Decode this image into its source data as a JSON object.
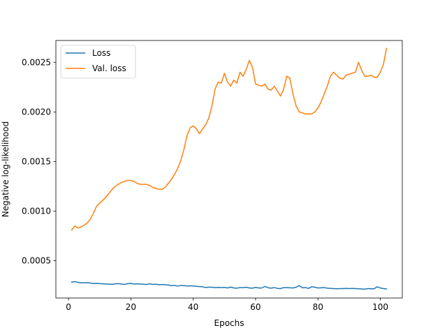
{
  "chart_data": {
    "type": "line",
    "title": "",
    "xlabel": "Epochs",
    "ylabel": "Negative log-likelihood",
    "xlim": [
      -4.05,
      107.05
    ],
    "ylim": [
      0.000125,
      0.00272
    ],
    "xticks": [
      0,
      20,
      40,
      60,
      80,
      100
    ],
    "xtick_labels": [
      "0",
      "20",
      "40",
      "60",
      "80",
      "100"
    ],
    "yticks": [
      0.0005,
      0.001,
      0.0015,
      0.002,
      0.0025
    ],
    "ytick_labels": [
      "0.0005",
      "0.0010",
      "0.0015",
      "0.0020",
      "0.0025"
    ],
    "grid": false,
    "legend_position": "top-left",
    "x_start": 1,
    "series": [
      {
        "name": "Loss",
        "color": "#1f77b4",
        "values": [
          0.000285,
          0.00029,
          0.000283,
          0.000278,
          0.000278,
          0.00028,
          0.000276,
          0.00027,
          0.000272,
          0.00027,
          0.000268,
          0.000266,
          0.000266,
          0.000262,
          0.000268,
          0.00027,
          0.000266,
          0.000262,
          0.00027,
          0.000272,
          0.000266,
          0.000268,
          0.000266,
          0.000264,
          0.000261,
          0.000268,
          0.000262,
          0.000264,
          0.000259,
          0.000261,
          0.000259,
          0.000256,
          0.00025,
          0.000252,
          0.000245,
          0.000252,
          0.00025,
          0.000246,
          0.000248,
          0.000246,
          0.000243,
          0.00024,
          0.000238,
          0.000231,
          0.000234,
          0.000234,
          0.00023,
          0.000232,
          0.00023,
          0.000232,
          0.000226,
          0.000235,
          0.000226,
          0.000224,
          0.00023,
          0.00023,
          0.000234,
          0.000226,
          0.000224,
          0.000232,
          0.000226,
          0.000226,
          0.000242,
          0.000228,
          0.000224,
          0.00023,
          0.000222,
          0.00022,
          0.00023,
          0.00023,
          0.000228,
          0.000226,
          0.000234,
          0.00025,
          0.000228,
          0.00023,
          0.000222,
          0.000238,
          0.000234,
          0.000226,
          0.000228,
          0.00023,
          0.000224,
          0.000222,
          0.00022,
          0.000218,
          0.00022,
          0.00022,
          0.000222,
          0.00022,
          0.000222,
          0.00022,
          0.000218,
          0.000216,
          0.000214,
          0.00022,
          0.000218,
          0.000218,
          0.000238,
          0.000226,
          0.00022,
          0.000216
        ]
      },
      {
        "name": "Val. loss",
        "color": "#ff7f0e",
        "values": [
          0.00081,
          0.00085,
          0.00083,
          0.00084,
          0.00086,
          0.00088,
          0.00092,
          0.00098,
          0.00105,
          0.00108,
          0.00111,
          0.00114,
          0.00118,
          0.00122,
          0.00125,
          0.00127,
          0.00129,
          0.0013,
          0.00131,
          0.00131,
          0.0013,
          0.00128,
          0.00127,
          0.00127,
          0.00127,
          0.00126,
          0.00124,
          0.00123,
          0.00122,
          0.00122,
          0.00124,
          0.00128,
          0.00132,
          0.00137,
          0.00143,
          0.00151,
          0.00162,
          0.00176,
          0.00184,
          0.00186,
          0.00183,
          0.00178,
          0.00183,
          0.00187,
          0.00194,
          0.00206,
          0.00223,
          0.0023,
          0.00229,
          0.00239,
          0.0023,
          0.00226,
          0.00232,
          0.00229,
          0.0024,
          0.00236,
          0.00243,
          0.00252,
          0.00245,
          0.00228,
          0.00227,
          0.00226,
          0.00228,
          0.00223,
          0.00222,
          0.00226,
          0.00221,
          0.00216,
          0.00223,
          0.00236,
          0.00234,
          0.00218,
          0.00206,
          0.002,
          0.00199,
          0.00198,
          0.00198,
          0.00198,
          0.002,
          0.00204,
          0.0021,
          0.00218,
          0.00226,
          0.00236,
          0.0024,
          0.00237,
          0.00234,
          0.00233,
          0.00237,
          0.00238,
          0.00239,
          0.0024,
          0.0025,
          0.00242,
          0.00236,
          0.00236,
          0.00237,
          0.00235,
          0.00235,
          0.0024,
          0.00248,
          0.00264
        ]
      }
    ]
  }
}
